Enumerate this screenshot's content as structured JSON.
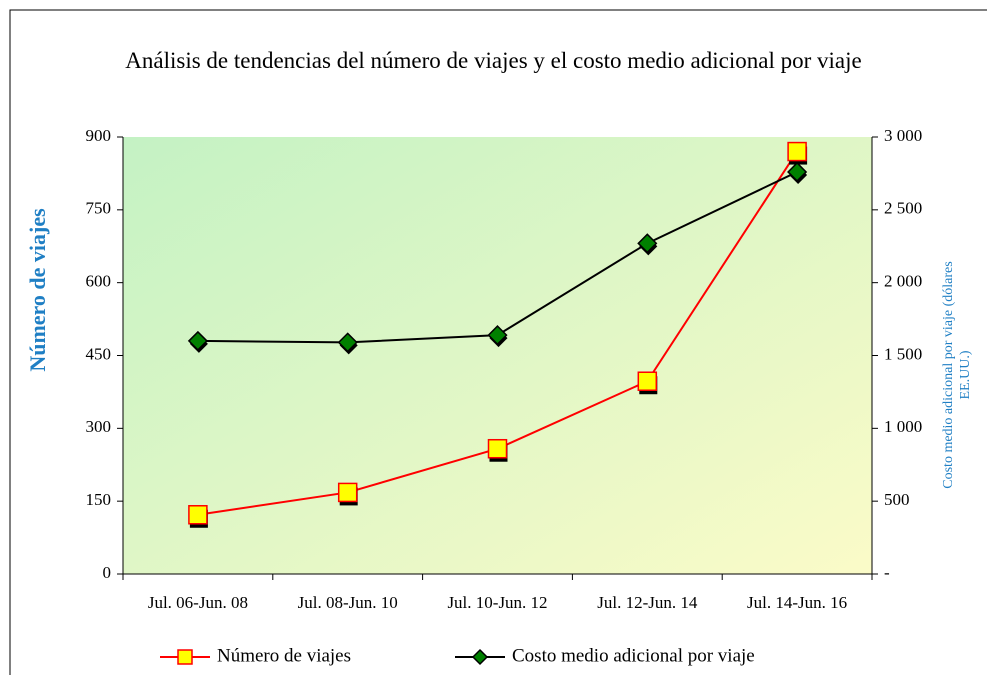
{
  "chart_data": {
    "type": "line",
    "title": "Análisis de tendencias del número de viajes y el costo medio adicional por viaje",
    "ylabel": "Número de viajes",
    "y2label": "Costo medio adicional por viaje (dólares EE.UU.)",
    "categories": [
      "Jul. 06-Jun. 08",
      "Jul. 08-Jun. 10",
      "Jul. 10-Jun. 12",
      "Jul. 12-Jun. 14",
      "Jul. 14-Jun. 16"
    ],
    "series": [
      {
        "name": "Número de viajes",
        "color": "#ff0000",
        "marker": "square",
        "marker_color": "#ffff00",
        "values": [
          122,
          168,
          258,
          397,
          870
        ]
      },
      {
        "name": "Costo medio adicional por viaje",
        "color": "#000000",
        "marker": "diamond",
        "marker_color": "#008000",
        "axis": "y2",
        "values": [
          1600,
          1590,
          1640,
          2270,
          2760
        ]
      }
    ],
    "ylim": [
      0,
      900
    ],
    "yticks": [
      0,
      150,
      300,
      450,
      600,
      750,
      900
    ],
    "y2lim": [
      0,
      3000
    ],
    "y2ticks": [
      {
        "value": 0,
        "label": "-"
      },
      500,
      {
        "value": 1000,
        "label": "1 000"
      },
      {
        "value": 1500,
        "label": "1 500"
      },
      {
        "value": 2000,
        "label": "2 000"
      },
      {
        "value": 2500,
        "label": "2 500"
      },
      {
        "value": 3000,
        "label": "3 000"
      }
    ],
    "legend": "bottom"
  }
}
